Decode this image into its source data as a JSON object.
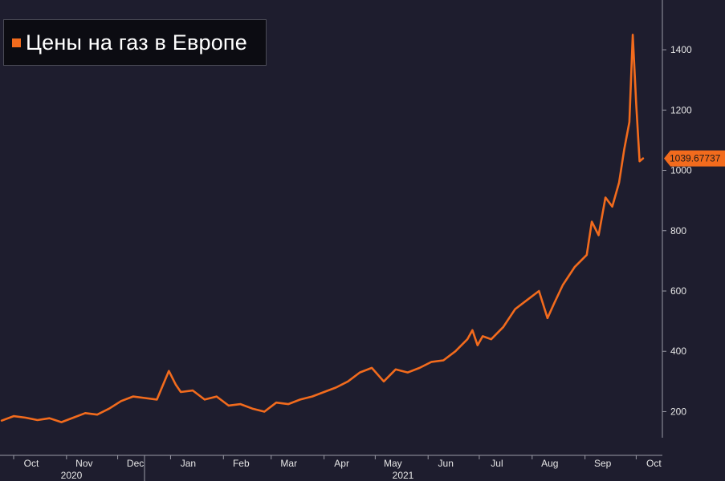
{
  "legend": {
    "label": "Цены на газ в Европе"
  },
  "colors": {
    "background": "#1e1d2e",
    "series": "#f26b1d",
    "axis": "#9a9aa6",
    "text": "#e6e6e6"
  },
  "chart_data": {
    "type": "line",
    "series": [
      {
        "name": "Цены на газ в Европе",
        "x": [
          "2020-09-24",
          "2020-10-01",
          "2020-10-08",
          "2020-10-15",
          "2020-10-22",
          "2020-10-29",
          "2020-11-05",
          "2020-11-12",
          "2020-11-19",
          "2020-11-26",
          "2020-12-03",
          "2020-12-10",
          "2020-12-17",
          "2020-12-24",
          "2020-12-31",
          "2021-01-04",
          "2021-01-07",
          "2021-01-14",
          "2021-01-21",
          "2021-01-28",
          "2021-02-04",
          "2021-02-11",
          "2021-02-18",
          "2021-02-25",
          "2021-03-04",
          "2021-03-11",
          "2021-03-18",
          "2021-03-25",
          "2021-04-01",
          "2021-04-08",
          "2021-04-15",
          "2021-04-22",
          "2021-04-29",
          "2021-05-06",
          "2021-05-13",
          "2021-05-20",
          "2021-05-27",
          "2021-06-03",
          "2021-06-10",
          "2021-06-17",
          "2021-06-24",
          "2021-06-27",
          "2021-06-30",
          "2021-07-03",
          "2021-07-08",
          "2021-07-15",
          "2021-07-22",
          "2021-07-29",
          "2021-08-05",
          "2021-08-10",
          "2021-08-14",
          "2021-08-19",
          "2021-08-26",
          "2021-09-02",
          "2021-09-05",
          "2021-09-09",
          "2021-09-13",
          "2021-09-17",
          "2021-09-21",
          "2021-09-24",
          "2021-09-27",
          "2021-09-29",
          "2021-10-01",
          "2021-10-03",
          "2021-10-05"
        ],
        "values": [
          170,
          185,
          180,
          172,
          178,
          165,
          180,
          195,
          190,
          210,
          235,
          250,
          245,
          240,
          335,
          290,
          265,
          270,
          240,
          250,
          220,
          225,
          210,
          200,
          230,
          225,
          240,
          250,
          265,
          280,
          300,
          330,
          345,
          300,
          340,
          330,
          345,
          365,
          370,
          400,
          440,
          470,
          420,
          450,
          440,
          480,
          540,
          570,
          600,
          510,
          560,
          620,
          680,
          720,
          830,
          785,
          910,
          880,
          960,
          1070,
          1160,
          1450,
          1220,
          1030,
          1039.67737
        ]
      }
    ],
    "yticks": [
      200,
      400,
      600,
      800,
      1000,
      1200,
      1400
    ],
    "ylim": [
      55,
      1565
    ],
    "months": [
      "Oct",
      "Nov",
      "Dec",
      "Jan",
      "Feb",
      "Mar",
      "Apr",
      "May",
      "Jun",
      "Jul",
      "Aug",
      "Sep",
      "Oct"
    ],
    "years": [
      "2020",
      "2021"
    ],
    "last_value_label": "1039.67737",
    "grid": false,
    "legend_position": "top-left"
  }
}
